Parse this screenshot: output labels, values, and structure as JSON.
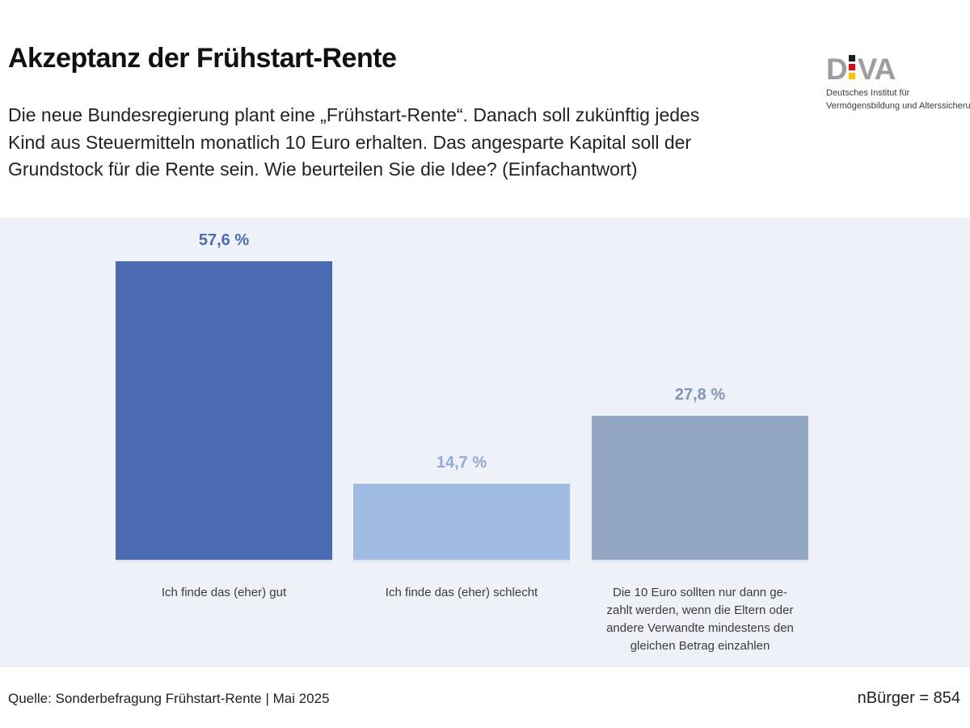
{
  "header": {
    "title": "Akzeptanz der Frühstart-Rente",
    "subtitle_lines": [
      "Die neue Bundesregierung plant eine „Frühstart-Rente“. Danach soll zukünftig jedes",
      "Kind aus Steuermitteln monatlich 10 Euro erhalten. Das angesparte Kapital soll der",
      "Grundstock für die Rente sein. Wie beurteilen Sie die Idee? (Einfachantwort)"
    ]
  },
  "logo": {
    "letter_d": "D",
    "letters_va": "VA",
    "flag_colors": [
      "#1d1d1b",
      "#e30613",
      "#f7c600"
    ],
    "letter_color": "#9d9d9c",
    "tagline_line1": "Deutsches Institut für",
    "tagline_line2": "Vermögensbildung und Alterssicherung"
  },
  "chart_data": {
    "type": "bar",
    "title": "Akzeptanz der Frühstart-Rente",
    "categories": [
      "Ich finde das (eher) gut",
      "Ich finde das (eher) schlecht",
      "Die 10 Euro sollten nur dann gezahlt werden, wenn die Eltern oder andere Verwandte mindestens den gleichen Betrag einzahlen"
    ],
    "categories_display_lines": [
      [
        "Ich finde das (eher) gut"
      ],
      [
        "Ich finde das (eher) schlecht"
      ],
      [
        "Die 10 Euro sollten nur dann ge-",
        "zahlt werden, wenn die Eltern oder",
        "andere Verwandte mindestens den",
        "gleichen Betrag einzahlen"
      ]
    ],
    "values": [
      57.6,
      14.7,
      27.8
    ],
    "value_labels": [
      "57,6 %",
      "14,7 %",
      "27,8 %"
    ],
    "unit": "%",
    "bar_colors": [
      "#4a6bb1",
      "#a1bce2",
      "#93a7c4"
    ],
    "value_label_colors": [
      "#4a6cb5",
      "#90abd4",
      "#8296b4"
    ],
    "panel_background": "#eff1f8",
    "ylim": [
      0,
      66
    ],
    "grid": false,
    "legend": "none"
  },
  "footer": {
    "source": "Quelle: Sonderbefragung Frühstart-Rente | Mai 2025",
    "sample_size": "nBürger = 854"
  }
}
